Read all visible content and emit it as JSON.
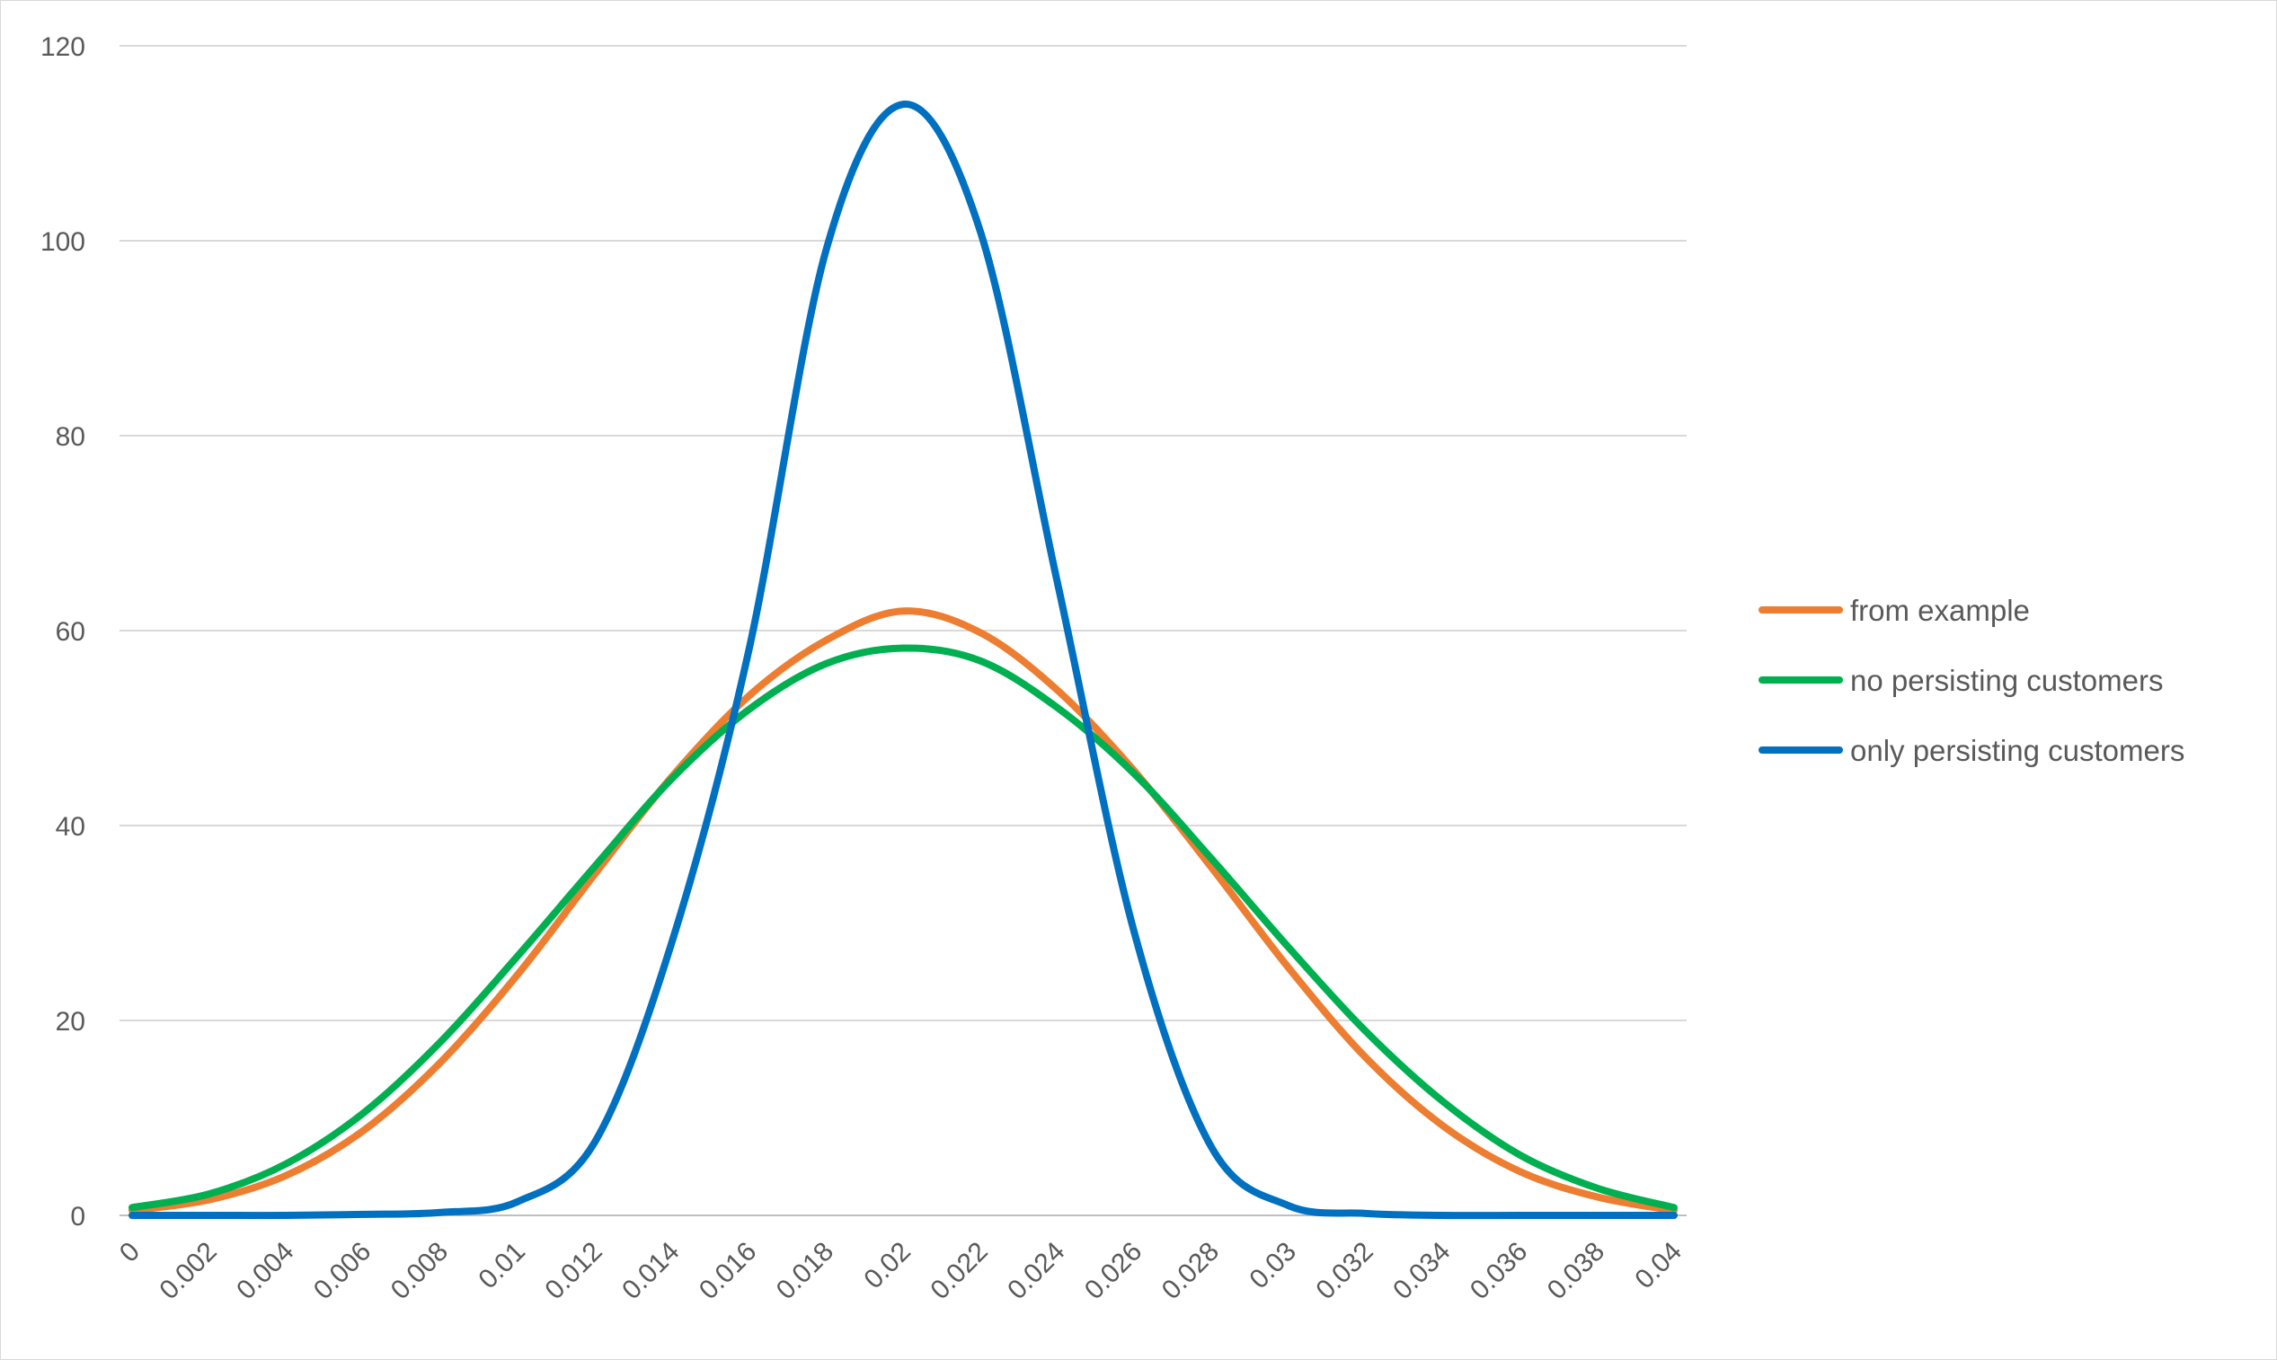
{
  "chart_data": {
    "type": "line",
    "title": "",
    "xlabel": "",
    "ylabel": "",
    "ylim": [
      0,
      120
    ],
    "xlim": [
      0,
      0.04
    ],
    "y_ticks": [
      0,
      20,
      40,
      60,
      80,
      100,
      120
    ],
    "x_tick_labels": [
      "0",
      "0.002",
      "0.004",
      "0.006",
      "0.008",
      "0.01",
      "0.012",
      "0.014",
      "0.016",
      "0.018",
      "0.02",
      "0.022",
      "0.024",
      "0.026",
      "0.028",
      "0.03",
      "0.032",
      "0.034",
      "0.036",
      "0.038",
      "0.04"
    ],
    "grid": true,
    "legend_position": "right",
    "x": [
      0,
      0.002,
      0.004,
      0.006,
      0.008,
      0.01,
      0.012,
      0.014,
      0.016,
      0.018,
      0.02,
      0.022,
      0.024,
      0.026,
      0.028,
      0.03,
      0.032,
      0.034,
      0.036,
      0.038,
      0.04
    ],
    "series": [
      {
        "name": "from example",
        "color": "#ED7D31",
        "values": [
          0.5,
          1.6,
          4.1,
          8.7,
          15.7,
          24.7,
          35.0,
          45.0,
          53.3,
          59.0,
          62.0,
          59.8,
          53.9,
          45.6,
          35.7,
          25.4,
          16.2,
          9.2,
          4.5,
          1.9,
          0.5
        ]
      },
      {
        "name": "no persisting customers",
        "color": "#00B050",
        "values": [
          0.8,
          2.2,
          5.3,
          10.5,
          17.8,
          26.6,
          35.8,
          44.8,
          51.9,
          56.6,
          58.2,
          56.9,
          52.1,
          45.3,
          36.6,
          27.5,
          18.9,
          11.7,
          6.2,
          2.8,
          0.8
        ]
      },
      {
        "name": "only persisting customers",
        "color": "#0070C0",
        "values": [
          0,
          0,
          0,
          0.1,
          0.3,
          1.4,
          7.5,
          28.0,
          58.0,
          99.0,
          114.0,
          101.0,
          65.0,
          29.0,
          7.0,
          1.0,
          0.2,
          0,
          0,
          0,
          0
        ]
      }
    ]
  }
}
